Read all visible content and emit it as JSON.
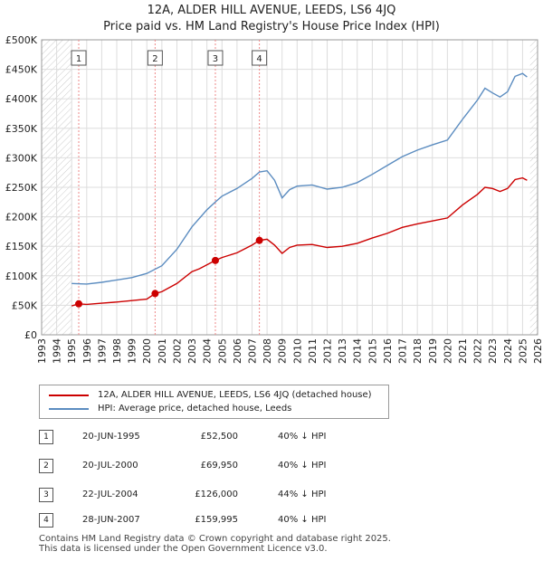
{
  "chart_data": {
    "type": "line",
    "title": "12A, ALDER HILL AVENUE, LEEDS, LS6 4JQ",
    "subtitle": "Price paid vs. HM Land Registry's House Price Index (HPI)",
    "x_ticks": [
      1993,
      1994,
      1995,
      1996,
      1997,
      1998,
      1999,
      2000,
      2001,
      2002,
      2003,
      2004,
      2005,
      2006,
      2007,
      2008,
      2009,
      2010,
      2011,
      2012,
      2013,
      2014,
      2015,
      2016,
      2017,
      2018,
      2019,
      2020,
      2021,
      2022,
      2023,
      2024,
      2025,
      2026
    ],
    "x_range": [
      1993,
      2026
    ],
    "y_range": [
      0,
      500000
    ],
    "y_ticks": [
      {
        "value": 0,
        "label": "£0"
      },
      {
        "value": 50000,
        "label": "£50K"
      },
      {
        "value": 100000,
        "label": "£100K"
      },
      {
        "value": 150000,
        "label": "£150K"
      },
      {
        "value": 200000,
        "label": "£200K"
      },
      {
        "value": 250000,
        "label": "£250K"
      },
      {
        "value": 300000,
        "label": "£300K"
      },
      {
        "value": 350000,
        "label": "£350K"
      },
      {
        "value": 400000,
        "label": "£400K"
      },
      {
        "value": 450000,
        "label": "£450K"
      },
      {
        "value": 500000,
        "label": "£500K"
      }
    ],
    "hatched_before": 1995.0,
    "hatched_after": 2025.5,
    "series": [
      {
        "name": "12A, ALDER HILL AVENUE, LEEDS, LS6 4JQ (detached house)",
        "color": "#cc0000",
        "points": [
          [
            1995.0,
            49000
          ],
          [
            1995.47,
            52500
          ],
          [
            1996.0,
            51500
          ],
          [
            1997.0,
            53500
          ],
          [
            1998.0,
            55500
          ],
          [
            1999.0,
            58000
          ],
          [
            2000.0,
            60500
          ],
          [
            2000.55,
            69950
          ],
          [
            2001.0,
            73000
          ],
          [
            2002.0,
            87000
          ],
          [
            2003.0,
            107000
          ],
          [
            2003.5,
            112000
          ],
          [
            2004.56,
            126000
          ],
          [
            2005.0,
            131000
          ],
          [
            2006.0,
            139000
          ],
          [
            2007.0,
            152000
          ],
          [
            2007.49,
            159995
          ],
          [
            2008.0,
            162000
          ],
          [
            2008.5,
            152000
          ],
          [
            2009.0,
            138000
          ],
          [
            2009.5,
            148000
          ],
          [
            2010.0,
            152000
          ],
          [
            2011.0,
            153000
          ],
          [
            2012.0,
            148000
          ],
          [
            2013.0,
            150000
          ],
          [
            2014.0,
            155000
          ],
          [
            2015.0,
            164000
          ],
          [
            2016.0,
            172000
          ],
          [
            2017.0,
            182000
          ],
          [
            2018.0,
            188000
          ],
          [
            2019.0,
            193000
          ],
          [
            2020.0,
            198000
          ],
          [
            2021.0,
            220000
          ],
          [
            2022.0,
            238000
          ],
          [
            2022.5,
            250000
          ],
          [
            2023.0,
            248000
          ],
          [
            2023.5,
            243000
          ],
          [
            2024.0,
            248000
          ],
          [
            2024.5,
            263000
          ],
          [
            2025.0,
            266000
          ],
          [
            2025.3,
            262000
          ]
        ]
      },
      {
        "name": "HPI: Average price, detached house, Leeds",
        "color": "#5b8cc0",
        "points": [
          [
            1995.0,
            87000
          ],
          [
            1996.0,
            86000
          ],
          [
            1997.0,
            89000
          ],
          [
            1998.0,
            93000
          ],
          [
            1999.0,
            97000
          ],
          [
            2000.0,
            104000
          ],
          [
            2001.0,
            117000
          ],
          [
            2002.0,
            145000
          ],
          [
            2003.0,
            183000
          ],
          [
            2004.0,
            212000
          ],
          [
            2004.6,
            226000
          ],
          [
            2005.0,
            235000
          ],
          [
            2006.0,
            248000
          ],
          [
            2007.0,
            265000
          ],
          [
            2007.5,
            276000
          ],
          [
            2008.0,
            278000
          ],
          [
            2008.5,
            262000
          ],
          [
            2009.0,
            232000
          ],
          [
            2009.5,
            246000
          ],
          [
            2010.0,
            252000
          ],
          [
            2011.0,
            254000
          ],
          [
            2012.0,
            247000
          ],
          [
            2013.0,
            250000
          ],
          [
            2014.0,
            258000
          ],
          [
            2015.0,
            272000
          ],
          [
            2016.0,
            287000
          ],
          [
            2017.0,
            302000
          ],
          [
            2018.0,
            313000
          ],
          [
            2019.0,
            322000
          ],
          [
            2020.0,
            330000
          ],
          [
            2021.0,
            365000
          ],
          [
            2022.0,
            398000
          ],
          [
            2022.5,
            418000
          ],
          [
            2023.0,
            410000
          ],
          [
            2023.5,
            403000
          ],
          [
            2024.0,
            412000
          ],
          [
            2024.5,
            438000
          ],
          [
            2025.0,
            443000
          ],
          [
            2025.3,
            437000
          ]
        ]
      }
    ],
    "sales": [
      {
        "n": "1",
        "year": 1995.47,
        "price": 52500
      },
      {
        "n": "2",
        "year": 2000.55,
        "price": 69950
      },
      {
        "n": "3",
        "year": 2004.56,
        "price": 126000
      },
      {
        "n": "4",
        "year": 2007.49,
        "price": 159995
      }
    ]
  },
  "legend": {
    "property": "12A, ALDER HILL AVENUE, LEEDS, LS6 4JQ (detached house)",
    "hpi": "HPI: Average price, detached house, Leeds"
  },
  "table": [
    {
      "n": "1",
      "date": "20-JUN-1995",
      "price": "£52,500",
      "hpi": "40% ↓ HPI"
    },
    {
      "n": "2",
      "date": "20-JUL-2000",
      "price": "£69,950",
      "hpi": "40% ↓ HPI"
    },
    {
      "n": "3",
      "date": "22-JUL-2004",
      "price": "£126,000",
      "hpi": "44% ↓ HPI"
    },
    {
      "n": "4",
      "date": "28-JUN-2007",
      "price": "£159,995",
      "hpi": "40% ↓ HPI"
    }
  ],
  "footer": {
    "line1": "Contains HM Land Registry data © Crown copyright and database right 2025.",
    "line2": "This data is licensed under the Open Government Licence v3.0."
  },
  "colors": {
    "property": "#cc0000",
    "hpi": "#5b8cc0",
    "grid": "#dddddd",
    "vline": "#ee8888"
  }
}
